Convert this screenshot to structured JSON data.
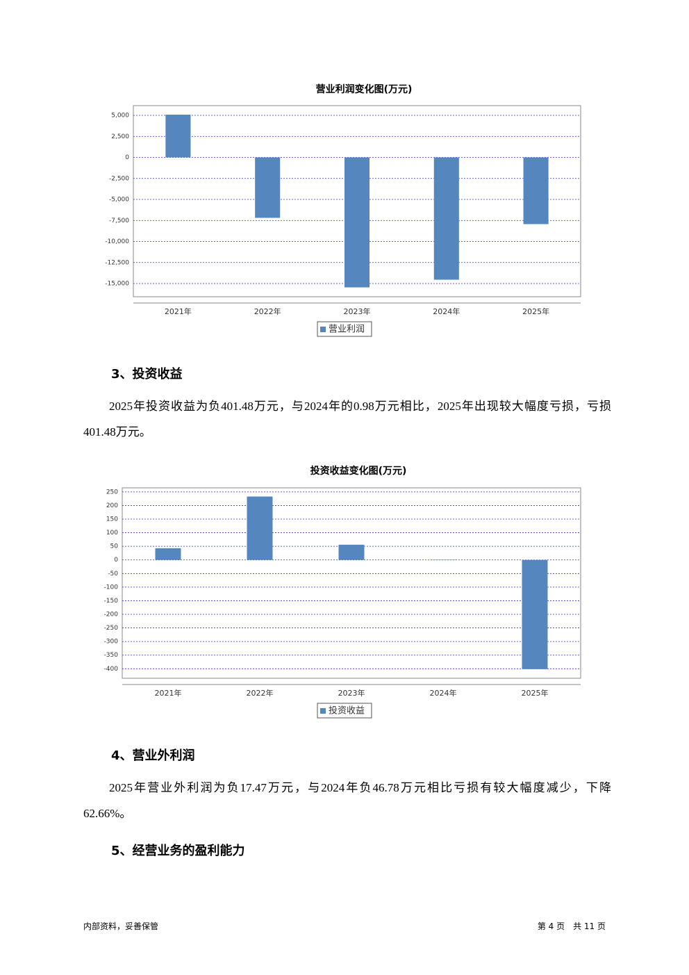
{
  "chart_data": [
    {
      "type": "bar",
      "title": "营业利润变化图(万元)",
      "categories": [
        "2021年",
        "2022年",
        "2023年",
        "2024年",
        "2025年"
      ],
      "series": [
        {
          "name": "营业利润",
          "color": "#5586be",
          "values": [
            5083,
            -7190,
            -15455,
            -14545,
            -7934
          ]
        }
      ],
      "ylim": [
        -16570,
        6157
      ],
      "yticks": [
        {
          "value": 5000,
          "label": "5,000"
        },
        {
          "value": 2500,
          "label": "2,500"
        },
        0,
        {
          "value": -2500,
          "label": "-2,500"
        },
        {
          "value": -5000,
          "label": "-5,000"
        },
        {
          "value": -7500,
          "label": "-7,500"
        },
        {
          "value": -10000,
          "label": "-10,000"
        },
        {
          "value": -12500,
          "label": "-12,500"
        },
        {
          "value": -15000,
          "label": "-15,000"
        }
      ],
      "grid": true
    },
    {
      "type": "bar",
      "title": "投资收益变化图(万元)",
      "categories": [
        "2021年",
        "2022年",
        "2023年",
        "2024年",
        "2025年"
      ],
      "series": [
        {
          "name": "投资收益",
          "color": "#5586be",
          "values": [
            43,
            233,
            56,
            0.98,
            -401.48
          ]
        }
      ],
      "ylim": [
        -435,
        265
      ],
      "yticks": [
        250,
        200,
        150,
        100,
        50,
        0,
        -50,
        -100,
        -150,
        -200,
        -250,
        -300,
        -350,
        -400
      ],
      "grid": true
    }
  ],
  "section_3": {
    "heading": "3、投资收益",
    "text": "2025年投资收益为负401.48万元，与2024年的0.98万元相比，2025年出现较大幅度亏损，亏损401.48万元。"
  },
  "section_4": {
    "heading": "4、营业外利润",
    "text": "2025年营业外利润为负17.47万元，与2024年负46.78万元相比亏损有较大幅度减少，下降62.66%。"
  },
  "section_5": {
    "heading": "5、经营业务的盈利能力"
  },
  "footer": {
    "left": "内部资料，妥善保管",
    "right": "第 4 页　共 11 页"
  }
}
